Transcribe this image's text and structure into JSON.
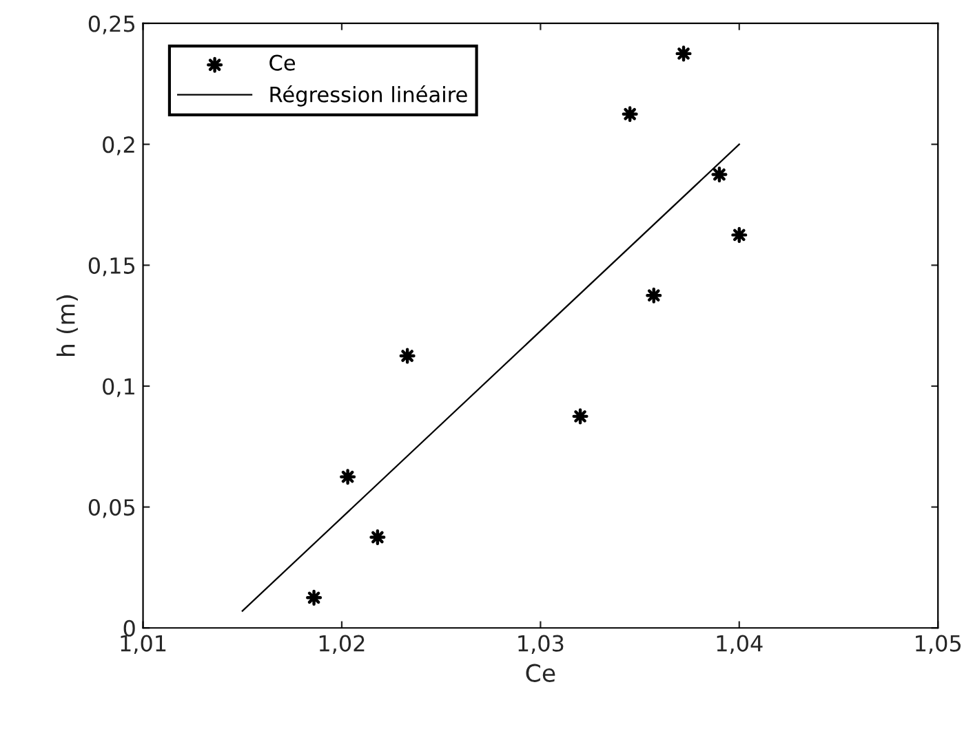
{
  "chart_data": {
    "type": "scatter",
    "xlabel": "Ce",
    "ylabel": "h (m)",
    "xlim": [
      1.01,
      1.05
    ],
    "ylim": [
      0,
      0.25
    ],
    "xticks": [
      {
        "value": 1.01,
        "label": "1,01"
      },
      {
        "value": 1.02,
        "label": "1,02"
      },
      {
        "value": 1.03,
        "label": "1,03"
      },
      {
        "value": 1.04,
        "label": "1,04"
      },
      {
        "value": 1.05,
        "label": "1,05"
      }
    ],
    "yticks": [
      {
        "value": 0,
        "label": "0"
      },
      {
        "value": 0.05,
        "label": "0,05"
      },
      {
        "value": 0.1,
        "label": "0,1"
      },
      {
        "value": 0.15,
        "label": "0,15"
      },
      {
        "value": 0.2,
        "label": "0,2"
      },
      {
        "value": 0.25,
        "label": "0,25"
      }
    ],
    "grid": false,
    "legend": "top left",
    "series": [
      {
        "name": "Ce",
        "marker": "star",
        "color": "#000000",
        "x": [
          1.0186,
          1.0203,
          1.0218,
          1.0233,
          1.032,
          1.0345,
          1.0357,
          1.0372,
          1.039,
          1.04
        ],
        "values": [
          0.0125,
          0.0625,
          0.0375,
          0.1125,
          0.0875,
          0.2125,
          0.1375,
          0.2375,
          0.1875,
          0.1625
        ]
      },
      {
        "name": "Régression linéaire",
        "type": "line",
        "color": "#000000",
        "x": [
          1.015,
          1.04
        ],
        "values": [
          0.007,
          0.2
        ]
      }
    ]
  }
}
